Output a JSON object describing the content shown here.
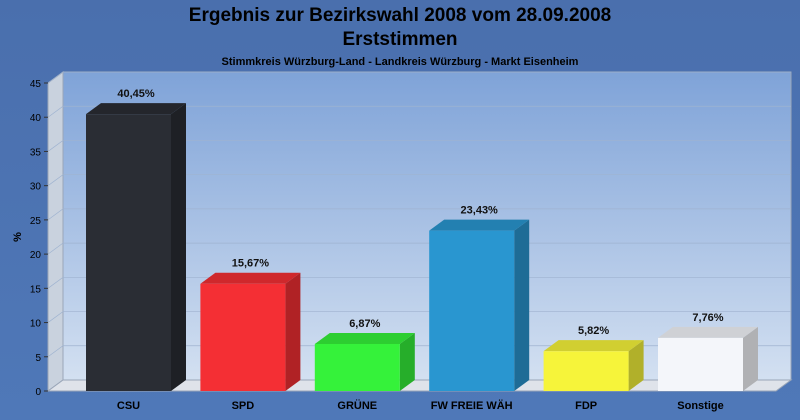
{
  "header": {
    "title_line1": "Ergebnis zur Bezirkswahl 2008 vom 28.09.2008",
    "title_line2": "Erststimmen",
    "subtitle": "Stimmkreis Würzburg-Land - Landkreis Würzburg - Markt Eisenheim"
  },
  "chart_data": {
    "type": "bar",
    "title": "Ergebnis zur Bezirkswahl 2008 vom 28.09.2008 Erststimmen",
    "subtitle": "Stimmkreis Würzburg-Land - Landkreis Würzburg - Markt Eisenheim",
    "ylabel": "%",
    "xlabel": "",
    "ylim": [
      0,
      45
    ],
    "yticks": [
      0,
      5,
      10,
      15,
      20,
      25,
      30,
      35,
      40,
      45
    ],
    "grid": true,
    "categories": [
      "CSU",
      "SPD",
      "GRÜNE",
      "FW FREIE WÄH",
      "FDP",
      "Sonstige"
    ],
    "values": [
      40.45,
      15.67,
      6.87,
      23.43,
      5.82,
      7.76
    ],
    "value_labels": [
      "40,45%",
      "15,67%",
      "6,87%",
      "23,43%",
      "5,82%",
      "7,76%"
    ],
    "colors": [
      "#2a2d34",
      "#f42f34",
      "#35f23a",
      "#2996d0",
      "#f6f43a",
      "#f4f6fa"
    ]
  }
}
